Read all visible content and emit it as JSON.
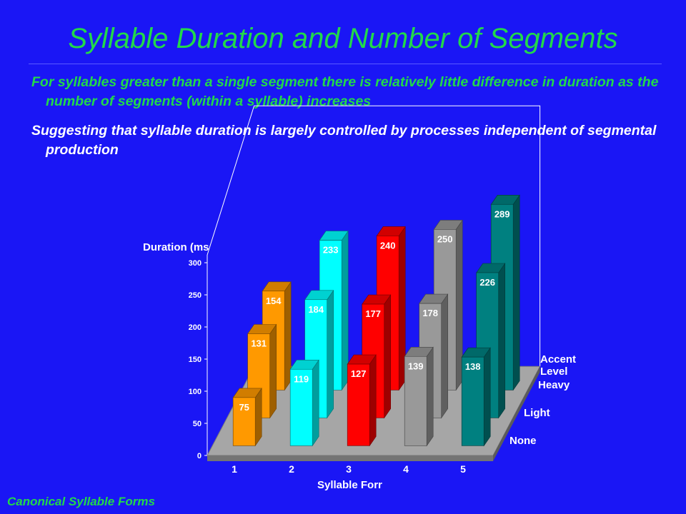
{
  "slide": {
    "title": "Syllable Duration and Number of Segments",
    "bullets": [
      "For syllables greater than a single segment there is relatively little difference in duration as the number of segments (within a syllable) increases",
      "Suggesting that syllable duration is largely controlled by processes independent of segmental production"
    ],
    "footer": "Canonical Syllable Forms"
  },
  "chart_data": {
    "type": "bar",
    "subtype": "3d-grouped",
    "ylabel": "Duration (ms",
    "xlabel": "Syllable Forr",
    "zlabel": [
      "Accent",
      "Level"
    ],
    "categories": [
      "1",
      "2",
      "3",
      "4",
      "5"
    ],
    "ylim": [
      0,
      300
    ],
    "yticks": [
      "0",
      "50",
      "100",
      "150",
      "200",
      "250",
      "300"
    ],
    "series": [
      {
        "name": "None",
        "values": [
          75,
          119,
          127,
          139,
          138
        ]
      },
      {
        "name": "Light",
        "values": [
          131,
          184,
          177,
          178,
          226
        ]
      },
      {
        "name": "Heavy",
        "values": [
          154,
          233,
          240,
          250,
          289
        ]
      }
    ],
    "colors": [
      "#ff9900",
      "#00ffff",
      "#ff0000",
      "#999999",
      "#008080"
    ],
    "floor_color": "#a6a6a6",
    "grid": false
  }
}
